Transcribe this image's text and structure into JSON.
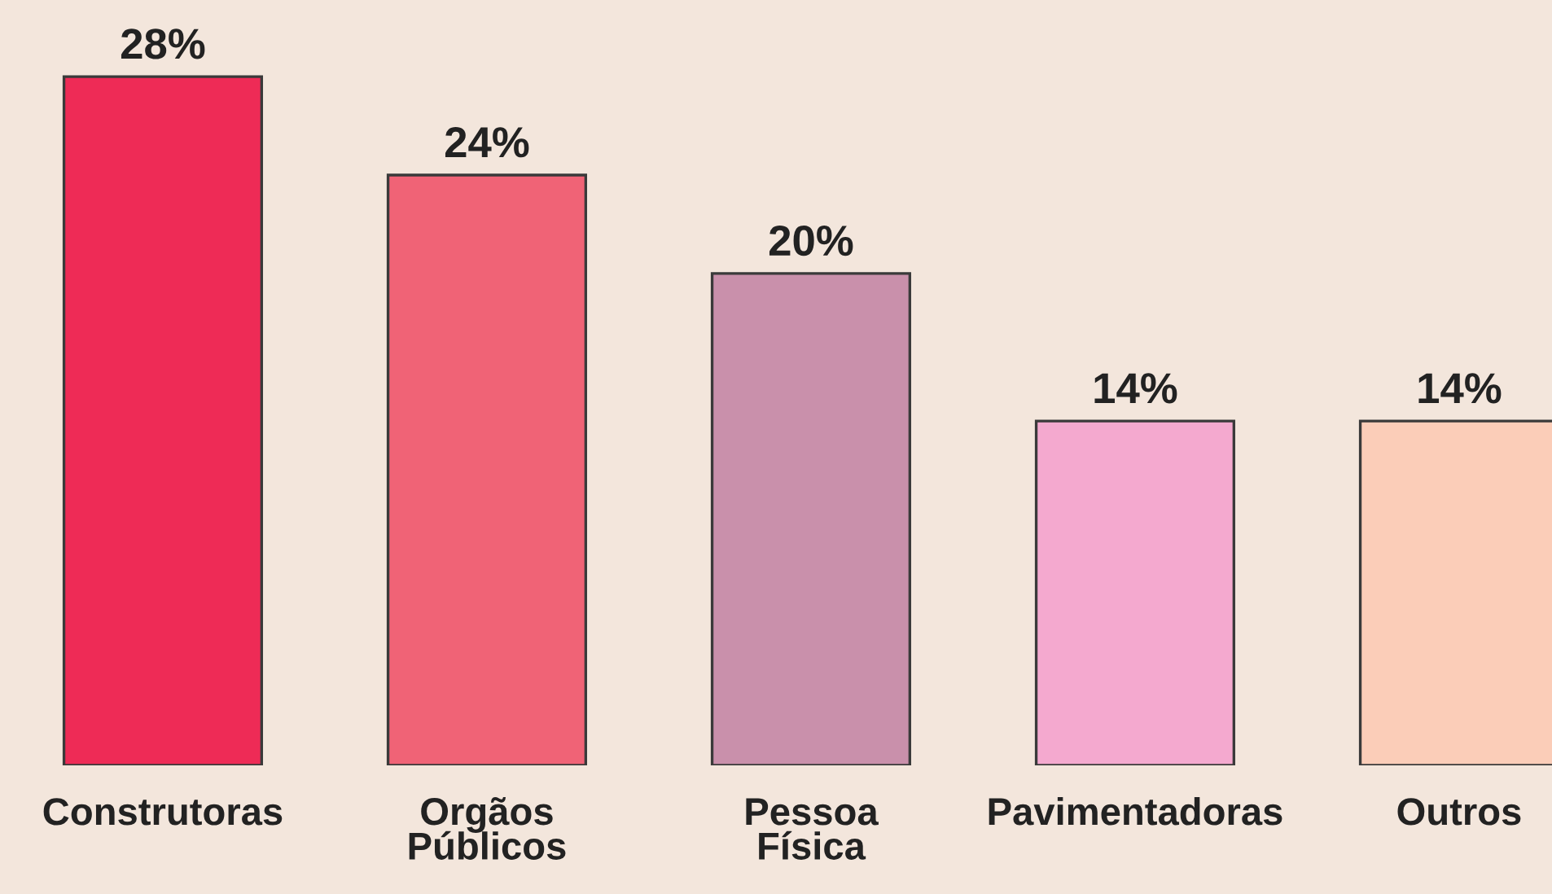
{
  "chart_data": {
    "type": "bar",
    "categories": [
      "Construtoras",
      "Orgãos\nPúblicos",
      "Pessoa\nFísica",
      "Pavimentadoras",
      "Outros"
    ],
    "values": [
      28,
      24,
      20,
      14,
      14
    ],
    "colors": [
      "#ee2b56",
      "#f06376",
      "#c990ab",
      "#f4a9cf",
      "#fbcdb8"
    ],
    "value_labels": [
      "28%",
      "24%",
      "20%",
      "14%",
      "14%"
    ],
    "grid": false,
    "legend": false,
    "tick_labels": "x"
  }
}
